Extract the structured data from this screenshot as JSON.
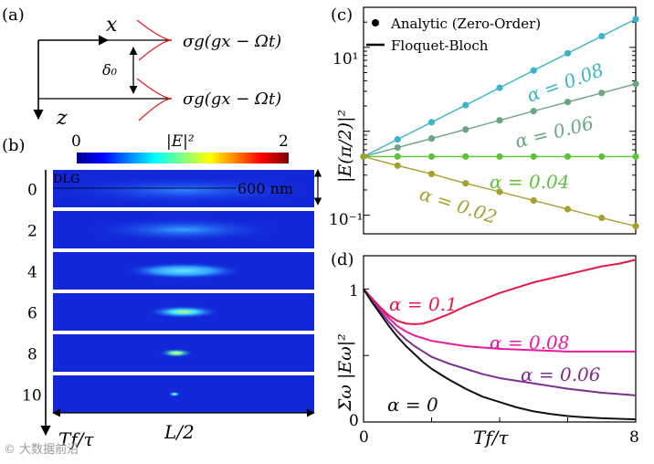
{
  "panel_a": {
    "label": "(a)",
    "x_axis": "x",
    "z_axis": "z",
    "spacing": "δ₀",
    "rail_label_top": "σg(gx − Ωt)",
    "rail_label_bottom": "σg(gx − Ωt)"
  },
  "panel_b": {
    "label": "(b)",
    "colorbar": {
      "label": "|E|²",
      "min": "0",
      "max": "2"
    },
    "dlg_label": "DLG",
    "scale_label": "600 nm",
    "row_labels": [
      "0",
      "2",
      "4",
      "6",
      "8",
      "10"
    ],
    "x_label": "L/2",
    "y_label": "Tf/τ"
  },
  "watermark": "© 大数据前沿",
  "chart_data": [
    {
      "panel": "(c)",
      "type": "line+scatter",
      "yscale": "log",
      "ylabel": "|E(π/2)|²",
      "ylim": [
        0.06,
        30
      ],
      "xlim": [
        0,
        8
      ],
      "legend": [
        {
          "label": "Analytic (Zero-Order)",
          "marker": "dot"
        },
        {
          "label": "Floquet-Bloch",
          "marker": "line"
        }
      ],
      "yticks": [
        "10¹",
        "10⁻¹"
      ],
      "series": [
        {
          "name": "α = 0.08",
          "color": "#3ab5c8",
          "x": [
            0,
            1,
            2,
            3,
            4,
            5,
            6,
            7,
            8
          ],
          "y": [
            0.5,
            0.8,
            1.28,
            2.05,
            3.3,
            5.3,
            8.5,
            13.6,
            21.7
          ]
        },
        {
          "name": "α = 0.06",
          "color": "#6ca582",
          "x": [
            0,
            1,
            2,
            3,
            4,
            5,
            6,
            7,
            8
          ],
          "y": [
            0.5,
            0.64,
            0.82,
            1.05,
            1.35,
            1.74,
            2.23,
            2.86,
            3.67
          ]
        },
        {
          "name": "α = 0.04",
          "color": "#5dc23a",
          "x": [
            0,
            1,
            2,
            3,
            4,
            5,
            6,
            7,
            8
          ],
          "y": [
            0.5,
            0.5,
            0.5,
            0.5,
            0.5,
            0.5,
            0.5,
            0.5,
            0.5
          ]
        },
        {
          "name": "α = 0.02",
          "color": "#a8a02d",
          "x": [
            0,
            1,
            2,
            3,
            4,
            5,
            6,
            7,
            8
          ],
          "y": [
            0.5,
            0.39,
            0.31,
            0.24,
            0.19,
            0.15,
            0.118,
            0.093,
            0.074
          ]
        }
      ]
    },
    {
      "panel": "(d)",
      "type": "line",
      "xlabel": "Tf/τ",
      "ylabel": "Σω |Eω|²",
      "xlim": [
        0,
        8
      ],
      "ylim": [
        0,
        1.25
      ],
      "xticks": [
        "0",
        "8"
      ],
      "yticks": [
        "0",
        "1"
      ],
      "series": [
        {
          "name": "α = 0.1",
          "color": "#e8194a",
          "x": [
            0,
            0.25,
            0.5,
            0.75,
            1,
            1.25,
            1.5,
            1.75,
            2,
            2.5,
            3,
            3.5,
            4,
            4.5,
            5,
            5.5,
            6,
            6.5,
            7,
            7.5,
            8
          ],
          "y": [
            1.0,
            0.93,
            0.86,
            0.8,
            0.76,
            0.74,
            0.735,
            0.74,
            0.76,
            0.81,
            0.87,
            0.92,
            0.97,
            1.01,
            1.05,
            1.08,
            1.11,
            1.14,
            1.17,
            1.19,
            1.22
          ]
        },
        {
          "name": "α = 0.08",
          "color": "#ea1aa0",
          "x": [
            0,
            0.25,
            0.5,
            0.75,
            1,
            1.25,
            1.5,
            1.75,
            2,
            2.5,
            3,
            3.5,
            4,
            4.5,
            5,
            5.5,
            6,
            6.5,
            7,
            7.5,
            8
          ],
          "y": [
            1.0,
            0.92,
            0.85,
            0.78,
            0.72,
            0.68,
            0.65,
            0.63,
            0.61,
            0.59,
            0.57,
            0.56,
            0.55,
            0.545,
            0.54,
            0.535,
            0.53,
            0.53,
            0.53,
            0.53,
            0.53
          ]
        },
        {
          "name": "α = 0.06",
          "color": "#7d2e8e",
          "x": [
            0,
            0.25,
            0.5,
            0.75,
            1,
            1.25,
            1.5,
            1.75,
            2,
            2.5,
            3,
            3.5,
            4,
            4.5,
            5,
            5.5,
            6,
            6.5,
            7,
            7.5,
            8
          ],
          "y": [
            1.0,
            0.91,
            0.83,
            0.75,
            0.68,
            0.62,
            0.57,
            0.53,
            0.49,
            0.44,
            0.4,
            0.36,
            0.33,
            0.31,
            0.29,
            0.27,
            0.25,
            0.235,
            0.22,
            0.21,
            0.2
          ]
        },
        {
          "name": "α = 0",
          "color": "#111111",
          "x": [
            0,
            0.25,
            0.5,
            0.75,
            1,
            1.25,
            1.5,
            1.75,
            2,
            2.5,
            3,
            3.5,
            4,
            4.5,
            5,
            5.5,
            6,
            6.5,
            7,
            7.5,
            8
          ],
          "y": [
            1.0,
            0.9,
            0.81,
            0.72,
            0.64,
            0.57,
            0.51,
            0.45,
            0.4,
            0.32,
            0.25,
            0.19,
            0.15,
            0.11,
            0.08,
            0.06,
            0.045,
            0.035,
            0.028,
            0.024,
            0.02
          ]
        }
      ]
    }
  ],
  "colors": {
    "jet_low": "#00008f",
    "jet_mid": "#00ffff",
    "jet_high": "#7f0000",
    "rail": "#e0202a"
  }
}
